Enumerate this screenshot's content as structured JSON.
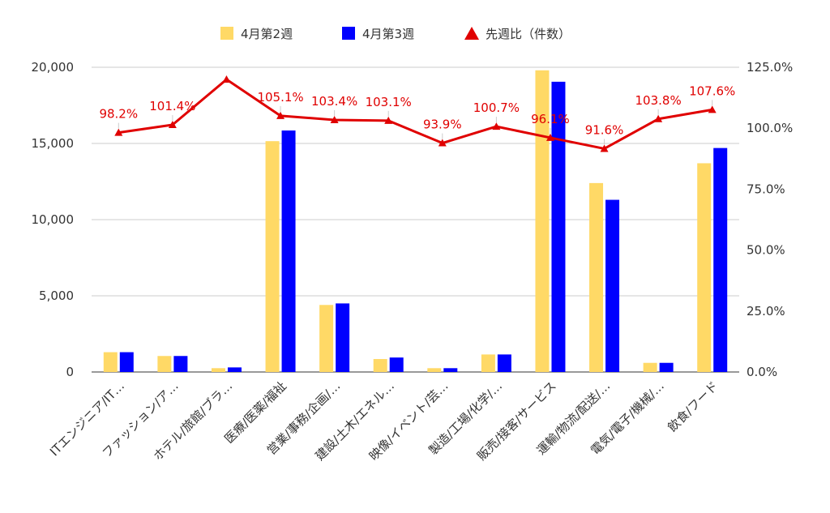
{
  "chart_data": {
    "type": "bar",
    "title": "",
    "categories": [
      "ITエンジニア/IT…",
      "ファッション/ア…",
      "ホテル/旅館/ブラ…",
      "医療/医薬/福祉",
      "営業/事務/企画/…",
      "建設/土木/エネル…",
      "映像/イベント/芸…",
      "製造/工場/化学/…",
      "販売/接客/サービス",
      "運輸/物流/配送/…",
      "電気/電子/機械/…",
      "飲食/フード"
    ],
    "series": [
      {
        "name": "4月第2週",
        "kind": "bar",
        "axis": "left",
        "color": "#ffd966",
        "values": [
          1300,
          1050,
          250,
          15150,
          4400,
          850,
          250,
          1150,
          19800,
          12400,
          600,
          13700
        ]
      },
      {
        "name": "4月第3週",
        "kind": "bar",
        "axis": "left",
        "color": "#0000ff",
        "values": [
          1300,
          1050,
          300,
          15850,
          4500,
          950,
          250,
          1150,
          19050,
          11300,
          600,
          14700
        ]
      },
      {
        "name": "先週比（件数）",
        "kind": "line",
        "axis": "right",
        "color": "#e00000",
        "values": [
          98.2,
          101.4,
          120.0,
          105.1,
          103.4,
          103.1,
          93.9,
          100.7,
          96.1,
          91.6,
          103.8,
          107.6
        ],
        "labels": [
          "98.2%",
          "101.4%",
          "",
          "105.1%",
          "103.4%",
          "103.1%",
          "93.9%",
          "100.7%",
          "96.1%",
          "91.6%",
          "103.8%",
          "107.6%"
        ]
      }
    ],
    "y_left": {
      "ylim": [
        0,
        20000
      ],
      "ticks": [
        0,
        5000,
        10000,
        15000,
        20000
      ],
      "tick_labels": [
        "0",
        "5,000",
        "10,000",
        "15,000",
        "20,000"
      ]
    },
    "y_right": {
      "ylim": [
        0,
        125
      ],
      "ticks": [
        0,
        25,
        50,
        75,
        100,
        125
      ],
      "tick_labels": [
        "0.0%",
        "25.0%",
        "50.0%",
        "75.0%",
        "100.0%",
        "125.0%"
      ]
    },
    "grid": true,
    "legend": "top"
  }
}
